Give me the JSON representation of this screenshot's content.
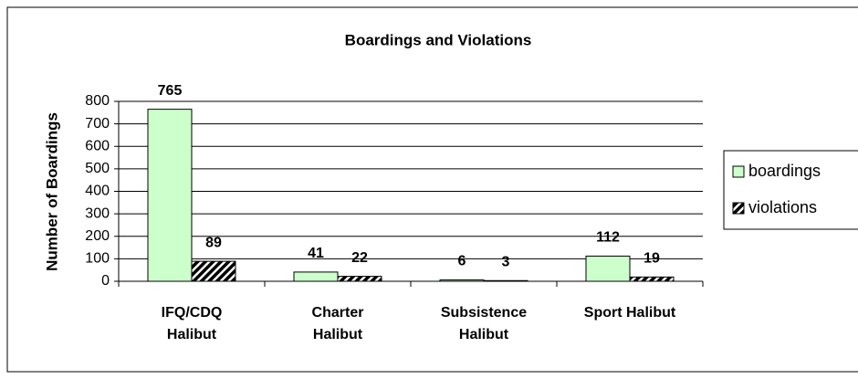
{
  "chart_data": {
    "type": "bar",
    "title": "Boardings and Violations",
    "y_label": "Number of Boardings",
    "categories": [
      [
        "IFQ/CDQ",
        "Halibut"
      ],
      [
        "Charter",
        "Halibut"
      ],
      [
        "Subsistence",
        "Halibut"
      ],
      [
        "Sport Halibut"
      ]
    ],
    "series": [
      {
        "name": "boardings",
        "color": "#ccffcc",
        "values": [
          765,
          41,
          6,
          112
        ]
      },
      {
        "name": "violations",
        "color": "hatch",
        "values": [
          89,
          22,
          3,
          19
        ]
      }
    ],
    "ylim": [
      0,
      800
    ],
    "yticks": [
      0,
      100,
      200,
      300,
      400,
      500,
      600,
      700,
      800
    ],
    "grid": true,
    "legend": "right"
  }
}
